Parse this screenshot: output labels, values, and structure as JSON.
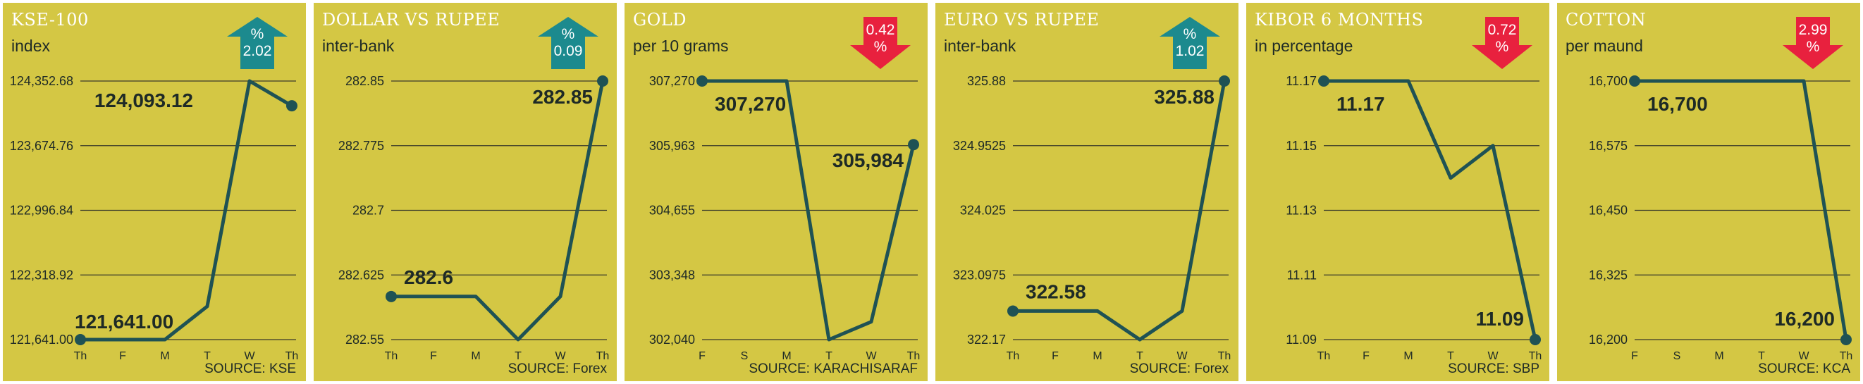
{
  "theme": {
    "panel_bg": "#d4c744",
    "line_color": "#1f5254",
    "grid_color": "#3a3a2a",
    "up_color": "#1c8a8e",
    "down_color": "#e8213e"
  },
  "chart_data": [
    {
      "type": "line",
      "title": "KSE-100",
      "subtitle": "index",
      "source": "SOURCE: KSE",
      "change": {
        "direction": "up",
        "value": "2.02",
        "symbol": "%"
      },
      "categories": [
        "Th",
        "F",
        "M",
        "T",
        "W",
        "Th"
      ],
      "values": [
        121641.0,
        121641.0,
        121641.0,
        121990,
        124352.68,
        124093.12
      ],
      "ylim": [
        121641.0,
        124352.68
      ],
      "yticks": [
        "124,352.68",
        "123,674.76",
        "122,996.84",
        "122,318.92",
        "121,641.00"
      ],
      "labels": [
        {
          "index": 0,
          "text": "121,641.00"
        },
        {
          "index": 5,
          "text": "124,093.12"
        }
      ]
    },
    {
      "type": "line",
      "title": "DOLLAR VS RUPEE",
      "subtitle": "inter-bank",
      "source": "SOURCE: Forex",
      "change": {
        "direction": "up",
        "value": "0.09",
        "symbol": "%"
      },
      "categories": [
        "Th",
        "F",
        "M",
        "T",
        "W",
        "Th"
      ],
      "values": [
        282.6,
        282.6,
        282.6,
        282.55,
        282.6,
        282.85
      ],
      "ylim": [
        282.55,
        282.85
      ],
      "yticks": [
        "282.85",
        "282.775",
        "282.7",
        "282.625",
        "282.55"
      ],
      "labels": [
        {
          "index": 0,
          "text": "282.6"
        },
        {
          "index": 5,
          "text": "282.85"
        }
      ]
    },
    {
      "type": "line",
      "title": "GOLD",
      "subtitle": "per 10 grams",
      "source": "SOURCE: KARACHISARAF",
      "change": {
        "direction": "down",
        "value": "0.42",
        "symbol": "%"
      },
      "categories": [
        "F",
        "S",
        "M",
        "T",
        "W",
        "Th"
      ],
      "values": [
        307270,
        307270,
        307270,
        302040,
        302400,
        305984
      ],
      "ylim": [
        302040,
        307270
      ],
      "yticks": [
        "307,270",
        "305,963",
        "304,655",
        "303,348",
        "302,040"
      ],
      "labels": [
        {
          "index": 0,
          "text": "307,270"
        },
        {
          "index": 5,
          "text": "305,984"
        }
      ]
    },
    {
      "type": "line",
      "title": "EURO VS RUPEE",
      "subtitle": "inter-bank",
      "source": "SOURCE: Forex",
      "change": {
        "direction": "up",
        "value": "1.02",
        "symbol": "%"
      },
      "categories": [
        "Th",
        "F",
        "M",
        "T",
        "W",
        "Th"
      ],
      "values": [
        322.58,
        322.58,
        322.58,
        322.17,
        322.58,
        325.88
      ],
      "ylim": [
        322.17,
        325.88
      ],
      "yticks": [
        "325.88",
        "324.9525",
        "324.025",
        "323.0975",
        "322.17"
      ],
      "labels": [
        {
          "index": 0,
          "text": "322.58"
        },
        {
          "index": 5,
          "text": "325.88"
        }
      ]
    },
    {
      "type": "line",
      "title": "KIBOR 6 MONTHS",
      "subtitle": "in percentage",
      "source": "SOURCE: SBP",
      "change": {
        "direction": "down",
        "value": "0.72",
        "symbol": "%"
      },
      "categories": [
        "Th",
        "F",
        "M",
        "T",
        "W",
        "Th"
      ],
      "values": [
        11.17,
        11.17,
        11.17,
        11.14,
        11.15,
        11.09
      ],
      "ylim": [
        11.09,
        11.17
      ],
      "yticks": [
        "11.17",
        "11.15",
        "11.13",
        "11.11",
        "11.09"
      ],
      "labels": [
        {
          "index": 0,
          "text": "11.17"
        },
        {
          "index": 5,
          "text": "11.09"
        }
      ]
    },
    {
      "type": "line",
      "title": "COTTON",
      "subtitle": "per maund",
      "source": "SOURCE: KCA",
      "change": {
        "direction": "down",
        "value": "2.99",
        "symbol": "%"
      },
      "categories": [
        "F",
        "S",
        "M",
        "T",
        "W",
        "Th"
      ],
      "values": [
        16700,
        16700,
        16700,
        16700,
        16700,
        16200
      ],
      "ylim": [
        16200,
        16700
      ],
      "yticks": [
        "16,700",
        "16,575",
        "16,450",
        "16,325",
        "16,200"
      ],
      "labels": [
        {
          "index": 0,
          "text": "16,700"
        },
        {
          "index": 5,
          "text": "16,200"
        }
      ]
    }
  ]
}
